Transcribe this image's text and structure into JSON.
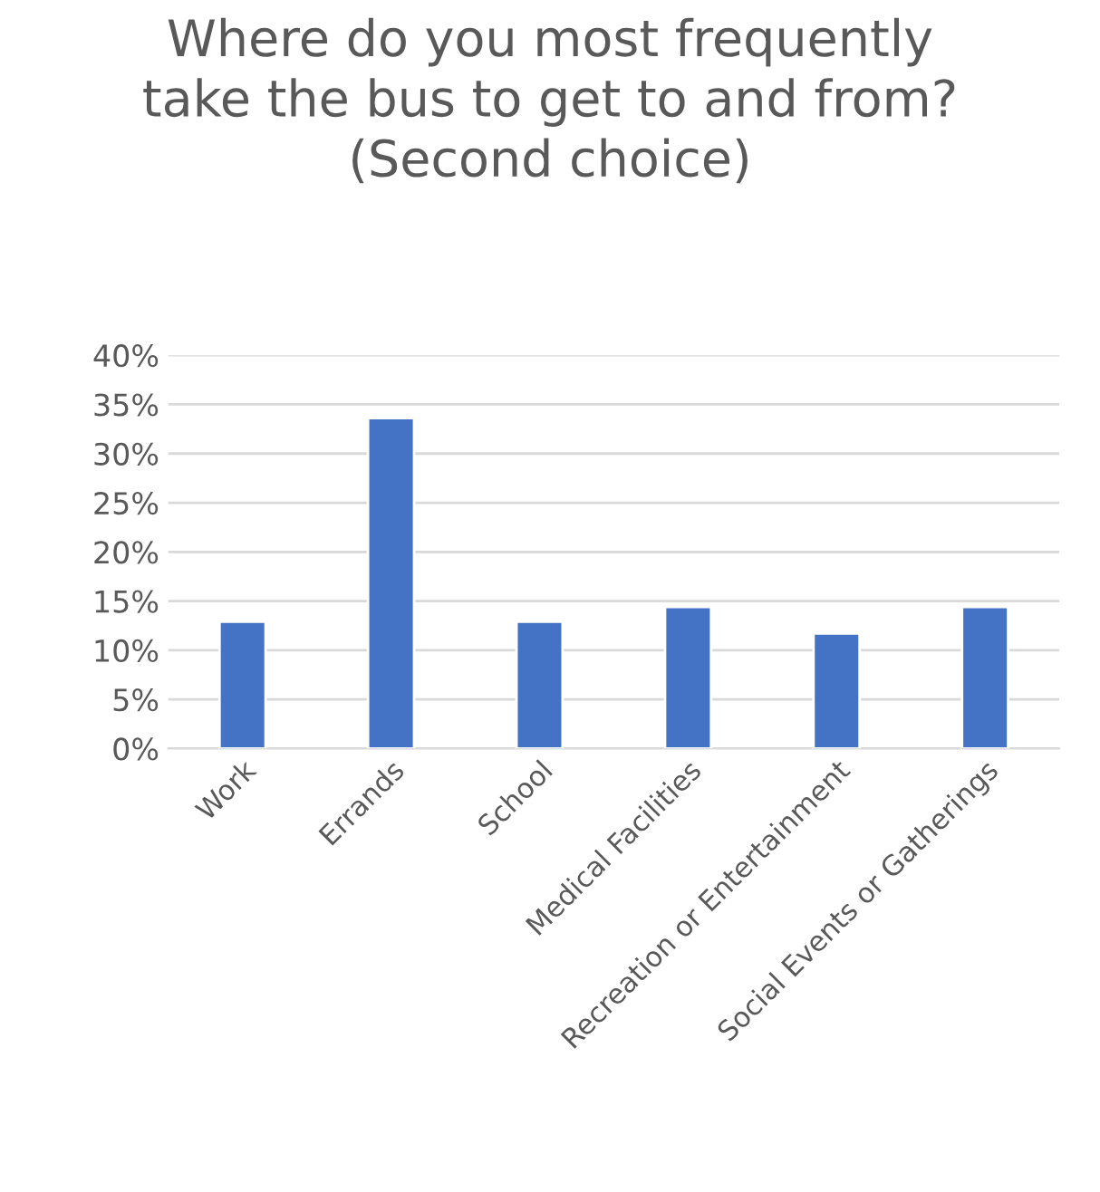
{
  "chart_data": {
    "type": "bar",
    "title": "Where do you most frequently take the bus to get to and from? (Second choice)",
    "categories": [
      "Work",
      "Errands",
      "School",
      "Medical Facilities",
      "Recreation or Entertainment",
      "Social Events or Gatherings"
    ],
    "values": [
      12.9,
      33.6,
      12.9,
      14.4,
      11.7,
      14.4
    ],
    "color": "#4472c4",
    "ylim": [
      0,
      40
    ],
    "yticks": [
      {
        "value": 0,
        "label": "0%"
      },
      {
        "value": 5,
        "label": "5%"
      },
      {
        "value": 10,
        "label": "10%"
      },
      {
        "value": 15,
        "label": "15%"
      },
      {
        "value": 20,
        "label": "20%"
      },
      {
        "value": 25,
        "label": "25%"
      },
      {
        "value": 30,
        "label": "30%"
      },
      {
        "value": 35,
        "label": "35%"
      },
      {
        "value": 40,
        "label": "40%"
      }
    ],
    "grid": "y"
  }
}
